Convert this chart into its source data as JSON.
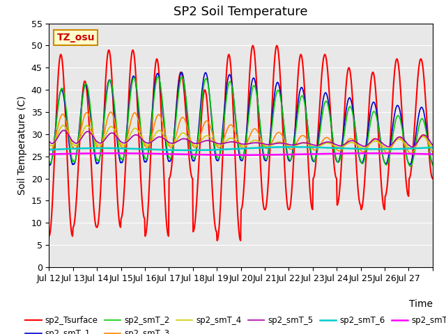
{
  "title": "SP2 Soil Temperature",
  "ylabel": "Soil Temperature (C)",
  "xlabel": "Time",
  "annotation": "TZ_osu",
  "ylim": [
    0,
    55
  ],
  "yticks": [
    0,
    5,
    10,
    15,
    20,
    25,
    30,
    35,
    40,
    45,
    50,
    55
  ],
  "xtick_labels": [
    "Jul 12",
    "Jul 13",
    "Jul 14",
    "Jul 15",
    "Jul 16",
    "Jul 17",
    "Jul 18",
    "Jul 19",
    "Jul 20",
    "Jul 21",
    "Jul 22",
    "Jul 23",
    "Jul 24",
    "Jul 25",
    "Jul 26",
    "Jul 27",
    ""
  ],
  "n_days": 16,
  "points_per_day": 48,
  "background_color": "#e8e8e8",
  "series_colors": {
    "sp2_Tsurface": "#ff0000",
    "sp2_smT_1": "#0000cc",
    "sp2_smT_2": "#00cc00",
    "sp2_smT_3": "#ff8800",
    "sp2_smT_4": "#cccc00",
    "sp2_smT_5": "#aa00aa",
    "sp2_smT_6": "#00cccc",
    "sp2_smT_7": "#ff00ff"
  },
  "series_linewidths": {
    "sp2_Tsurface": 1.5,
    "sp2_smT_1": 1.2,
    "sp2_smT_2": 1.2,
    "sp2_smT_3": 1.2,
    "sp2_smT_4": 1.2,
    "sp2_smT_5": 1.2,
    "sp2_smT_6": 1.8,
    "sp2_smT_7": 1.8
  },
  "legend_ncol": 6,
  "title_fontsize": 13,
  "label_fontsize": 10,
  "tick_fontsize": 9
}
